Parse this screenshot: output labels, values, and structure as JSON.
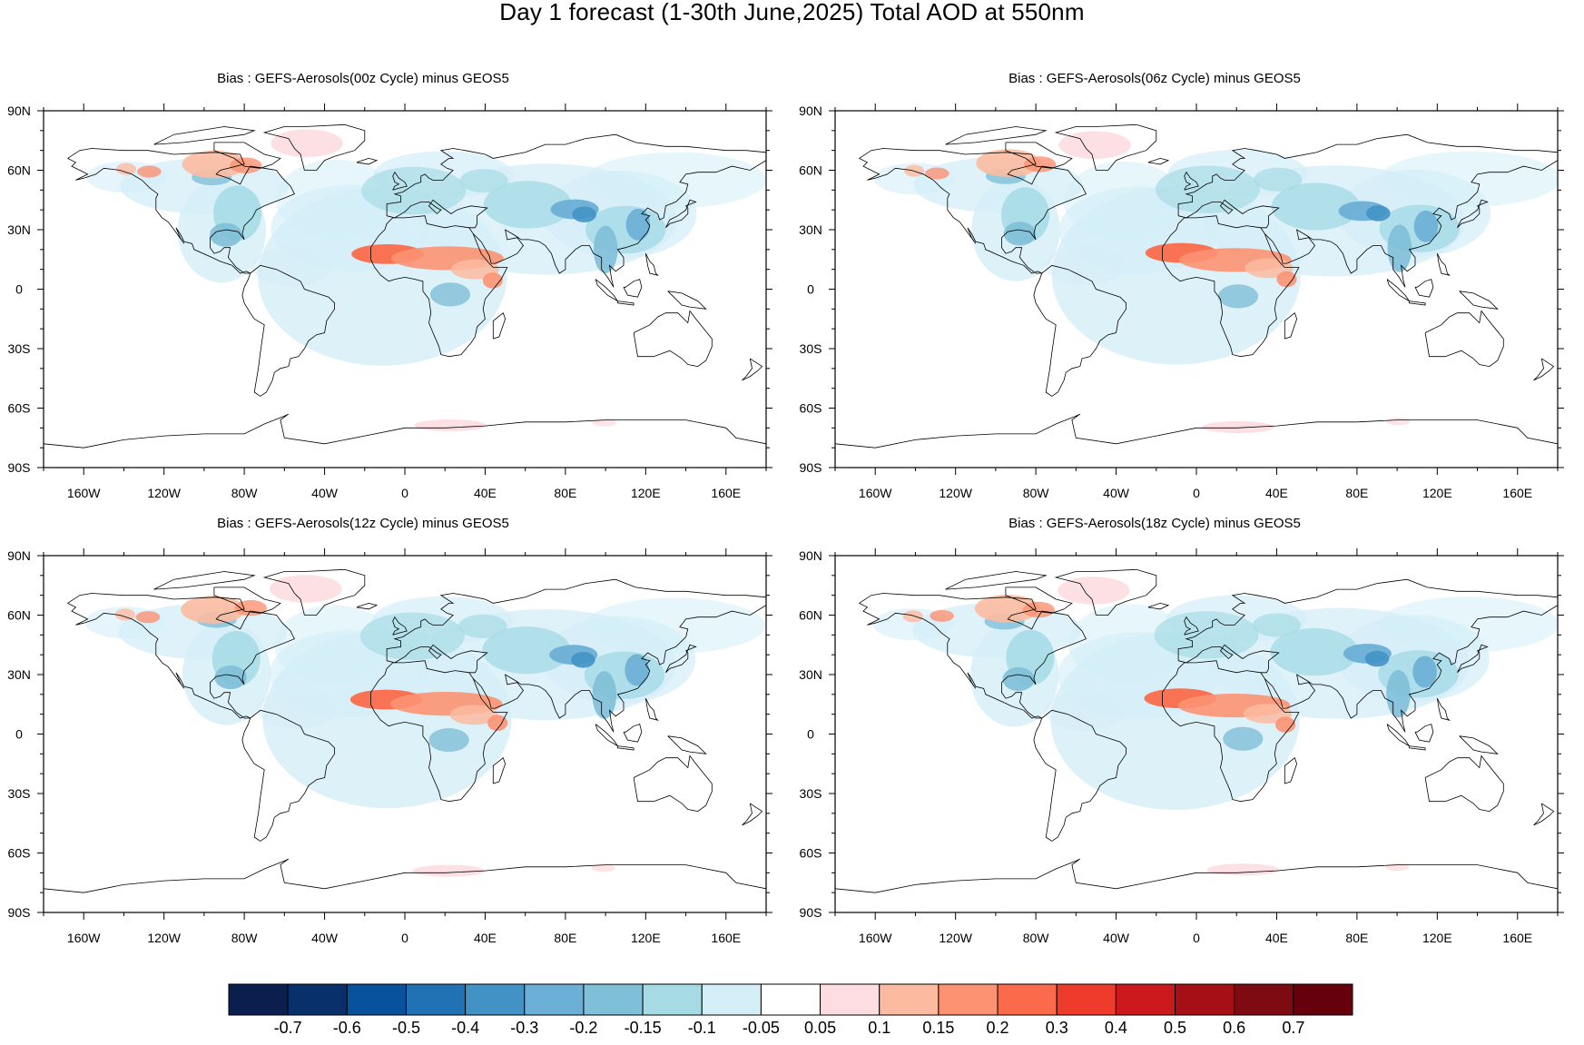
{
  "title": "Day 1 forecast (1-30th June,2025) Total AOD at 550nm",
  "panels": [
    {
      "title": "Bias : GEFS-Aerosols(00z Cycle) minus GEOS5",
      "variant": 0
    },
    {
      "title": "Bias : GEFS-Aerosols(06z Cycle) minus GEOS5",
      "variant": 1
    },
    {
      "title": "Bias : GEFS-Aerosols(12z Cycle) minus GEOS5",
      "variant": 2
    },
    {
      "title": "Bias : GEFS-Aerosols(18z Cycle) minus GEOS5",
      "variant": 3
    }
  ],
  "lat_ticks": [
    "90N",
    "60N",
    "30N",
    "0",
    "30S",
    "60S",
    "90S"
  ],
  "lon_ticks": [
    "160W",
    "120W",
    "80W",
    "40W",
    "0",
    "40E",
    "80E",
    "120E",
    "160E"
  ],
  "colorbar": {
    "colors": [
      "#0a1f4d",
      "#08306b",
      "#08519c",
      "#2171b5",
      "#4292c6",
      "#6baed6",
      "#7fbfd8",
      "#a6dbe6",
      "#d4eef8",
      "#ffffff",
      "#fddde1",
      "#fcbba1",
      "#fc9272",
      "#fb6a4a",
      "#ef3b2c",
      "#cb181d",
      "#a50f15",
      "#7f0b12",
      "#67000d"
    ],
    "labels": [
      "-0.7",
      "-0.6",
      "-0.5",
      "-0.4",
      "-0.3",
      "-0.2",
      "-0.15",
      "-0.1",
      "-0.05",
      "0.05",
      "0.1",
      "0.15",
      "0.2",
      "0.3",
      "0.4",
      "0.5",
      "0.6",
      "0.7"
    ]
  }
}
